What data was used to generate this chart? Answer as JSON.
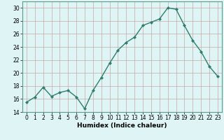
{
  "xlabel": "Humidex (Indice chaleur)",
  "ylabel": "",
  "x": [
    0,
    1,
    2,
    3,
    4,
    5,
    6,
    7,
    8,
    9,
    10,
    11,
    12,
    13,
    14,
    15,
    16,
    17,
    18,
    19,
    20,
    21,
    22,
    23
  ],
  "y": [
    15.5,
    16.3,
    17.8,
    16.4,
    17.0,
    17.3,
    16.3,
    14.5,
    17.3,
    19.3,
    21.5,
    23.5,
    24.7,
    25.5,
    27.3,
    27.8,
    28.3,
    30.0,
    29.8,
    27.3,
    25.0,
    23.3,
    21.0,
    19.5
  ],
  "line_color": "#2e7d6e",
  "marker": "D",
  "marker_size": 2.0,
  "bg_color": "#dff4f4",
  "grid_color": "#c8a8a8",
  "ylim": [
    14,
    31
  ],
  "yticks": [
    14,
    16,
    18,
    20,
    22,
    24,
    26,
    28,
    30
  ],
  "xticks": [
    0,
    1,
    2,
    3,
    4,
    5,
    6,
    7,
    8,
    9,
    10,
    11,
    12,
    13,
    14,
    15,
    16,
    17,
    18,
    19,
    20,
    21,
    22,
    23
  ],
  "line_width": 1.0,
  "axis_fontsize": 6.5,
  "tick_fontsize": 5.5
}
